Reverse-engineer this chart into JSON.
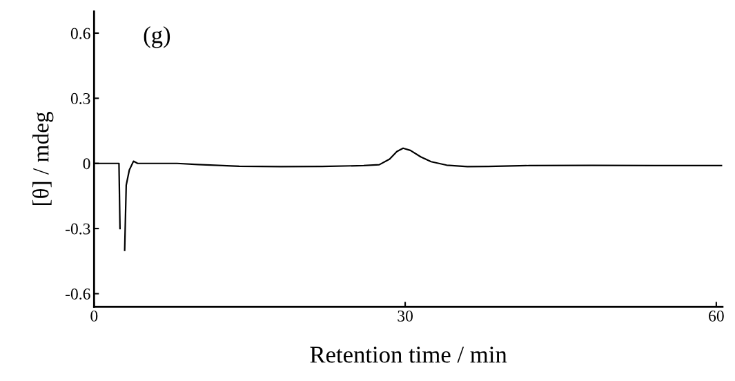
{
  "chart_data": {
    "type": "line",
    "xlabel": "Retention time / min",
    "ylabel": "[θ] / mdeg",
    "annotations": [
      "(g)"
    ],
    "xlim": [
      0,
      60.6
    ],
    "ylim": [
      -0.66,
      0.7
    ],
    "xticks": [
      0,
      30,
      60
    ],
    "yticks": [
      {
        "value": 0.6,
        "label": "0.6"
      },
      {
        "value": 0.3,
        "label": "0.3"
      },
      0,
      {
        "value": -0.3,
        "label": "-0.3"
      },
      {
        "value": -0.6,
        "label": "-0.6"
      }
    ],
    "grid": false,
    "marker": "none",
    "line_style": "solid",
    "series": [
      {
        "color": "#000000",
        "x": [
          0,
          2.4,
          2.5,
          2.65,
          2.8,
          2.95,
          3.1,
          3.4,
          3.8,
          4.2,
          8,
          10,
          14,
          18,
          22,
          26,
          27.5,
          28.5,
          29.2,
          29.8,
          30.5,
          31.5,
          32.5,
          34,
          36,
          38,
          42,
          48,
          54,
          60.5
        ],
        "values": [
          0,
          0,
          -0.3,
          null,
          null,
          -0.4,
          -0.1,
          -0.03,
          0.01,
          0,
          0,
          -0.005,
          -0.013,
          -0.015,
          -0.014,
          -0.01,
          -0.006,
          0.02,
          0.055,
          0.07,
          0.06,
          0.03,
          0.008,
          -0.008,
          -0.015,
          -0.014,
          -0.01,
          -0.009,
          -0.01,
          -0.01
        ]
      }
    ]
  }
}
